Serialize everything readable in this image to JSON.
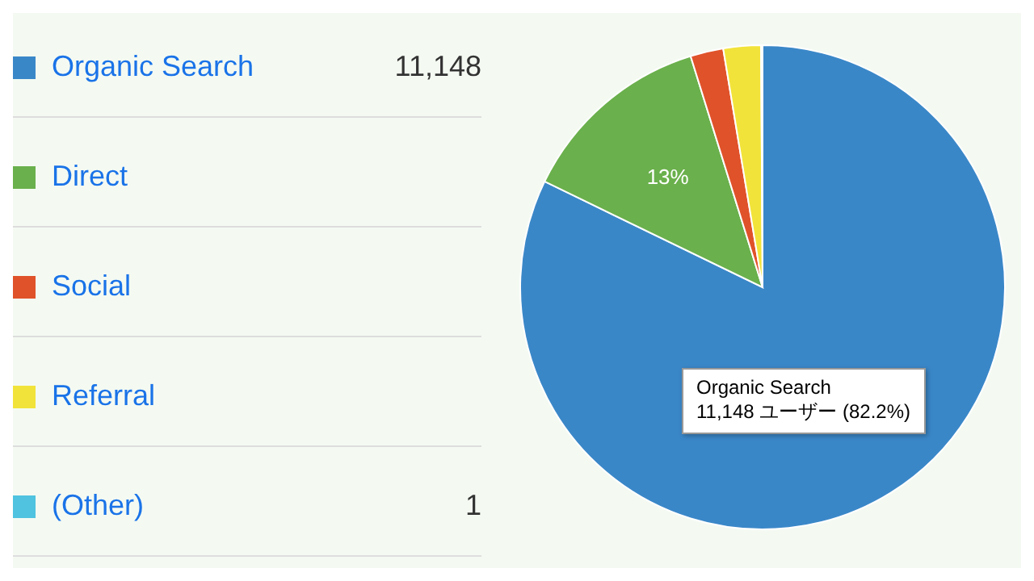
{
  "chart_data": {
    "type": "pie",
    "categories": [
      "Organic Search",
      "Direct",
      "Social",
      "Referral",
      "(Other)"
    ],
    "values": [
      82.2,
      13,
      2.2,
      2.5,
      0.1
    ],
    "colors": [
      "#3a87c8",
      "#6ab04c",
      "#e0522a",
      "#f2e33a",
      "#4fc3e0"
    ],
    "value_labels": [
      null,
      "13%",
      null,
      null,
      null
    ],
    "legend": "left",
    "annotations": [
      {
        "text": "11,148",
        "x": "Organic Search"
      },
      {
        "text": "1",
        "x": "(Other)"
      },
      "Organic Search\n11,148 ユーザー (82.2%)"
    ]
  }
}
